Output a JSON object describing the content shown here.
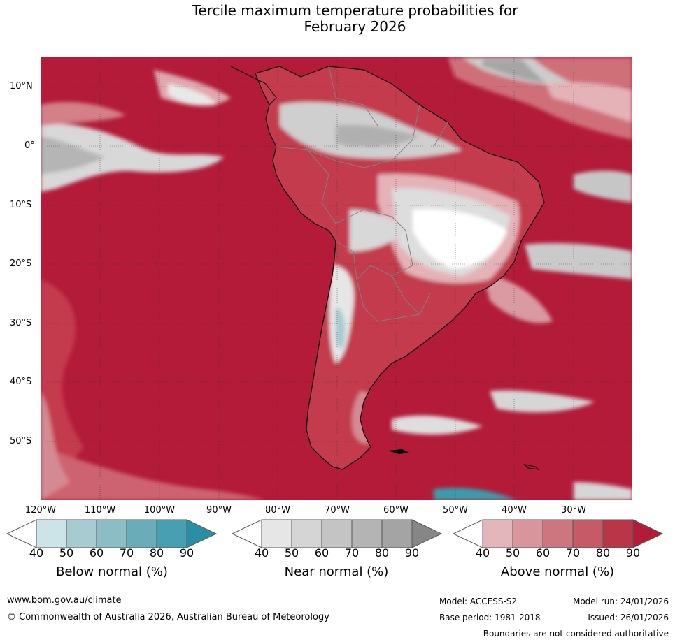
{
  "title": {
    "line1": "Tercile maximum temperature probabilities for",
    "line2": "February 2026"
  },
  "map": {
    "region": "South America",
    "lat_labels": [
      "10°N",
      "0°",
      "10°S",
      "20°S",
      "30°S",
      "40°S",
      "50°S"
    ],
    "lon_labels": [
      "120°W",
      "110°W",
      "100°W",
      "90°W",
      "80°W",
      "70°W",
      "60°W",
      "50°W",
      "40°W",
      "30°W"
    ],
    "colors": {
      "above_90": "#b31b38",
      "above_80": "#bf3248",
      "above_70": "#ca5e6b",
      "above_60": "#d48089",
      "above_50": "#e0a7ae",
      "above_40": "#ebc8cc",
      "near_40": "#e6e6e6",
      "near_50": "#d6d6d6",
      "near_60": "#c6c6c6",
      "near_70": "#b6b6b6",
      "near_80": "#a6a6a6",
      "below_40": "#c9e1e6",
      "below_50": "#a6cad0",
      "below_80": "#3a9bab",
      "land_outline": "#000000",
      "border": "#808080"
    }
  },
  "legends": [
    {
      "name": "Below normal (%)",
      "ticks": [
        "40",
        "50",
        "60",
        "70",
        "80",
        "90"
      ],
      "colors": [
        "#ffffff",
        "#cce3e8",
        "#a8cbd1",
        "#8cbcc4",
        "#6aadb9",
        "#47a0b1",
        "#2a8fa3"
      ]
    },
    {
      "name": "Near normal (%)",
      "ticks": [
        "40",
        "50",
        "60",
        "70",
        "80",
        "90"
      ],
      "colors": [
        "#ffffff",
        "#e6e6e6",
        "#d5d5d5",
        "#c4c4c4",
        "#b4b4b4",
        "#a4a4a4",
        "#868686"
      ]
    },
    {
      "name": "Above normal (%)",
      "ticks": [
        "40",
        "50",
        "60",
        "70",
        "80",
        "90"
      ],
      "colors": [
        "#ffffff",
        "#e3b6bb",
        "#d9959c",
        "#cd767f",
        "#c45b66",
        "#bb3549",
        "#b31b38"
      ]
    }
  ],
  "footer": {
    "website": "www.bom.gov.au/climate",
    "copyright": "© Commonwealth of Australia 2026, Australian Bureau of Meteorology",
    "model": "Model: ACCESS-S2",
    "base_period": "Base period: 1981-2018",
    "model_run": "Model run: 24/01/2026",
    "issued": "Issued: 26/01/2026",
    "disclaimer": "Boundaries are not considered authoritative"
  }
}
